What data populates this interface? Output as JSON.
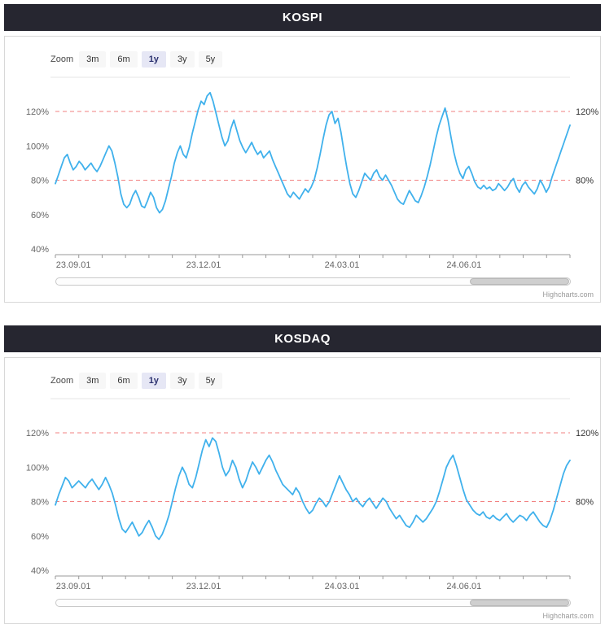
{
  "page": {
    "credit": "Highcharts.com"
  },
  "panels": [
    {
      "title": "KOSPI",
      "toolbar": {
        "zoom_label": "Zoom",
        "buttons": [
          {
            "label": "3m",
            "selected": false
          },
          {
            "label": "6m",
            "selected": false
          },
          {
            "label": "1y",
            "selected": true
          },
          {
            "label": "3y",
            "selected": false
          },
          {
            "label": "5y",
            "selected": false
          }
        ]
      },
      "navigator": {
        "thumb_start": 0.805,
        "thumb_end": 0.998
      }
    },
    {
      "title": "KOSDAQ",
      "toolbar": {
        "zoom_label": "Zoom",
        "buttons": [
          {
            "label": "3m",
            "selected": false
          },
          {
            "label": "6m",
            "selected": false
          },
          {
            "label": "1y",
            "selected": true
          },
          {
            "label": "3y",
            "selected": false
          },
          {
            "label": "5y",
            "selected": false
          }
        ]
      },
      "navigator": {
        "thumb_start": 0.805,
        "thumb_end": 0.998
      }
    }
  ],
  "chart_data": [
    {
      "type": "line",
      "title": "KOSPI",
      "xlabel": "",
      "ylabel": "",
      "ylim": [
        40,
        140
      ],
      "y_ticks": [
        120,
        100,
        80,
        60,
        40
      ],
      "x_ticks": [
        {
          "pos": 0.035,
          "label": "23.09.01"
        },
        {
          "pos": 0.288,
          "label": "23.12.01"
        },
        {
          "pos": 0.557,
          "label": "24.03.01"
        },
        {
          "pos": 0.794,
          "label": "24.06.01"
        }
      ],
      "plot_lines": [
        {
          "value": 120,
          "label": "120%"
        },
        {
          "value": 80,
          "label": "80%"
        }
      ],
      "color": "#40b1ec",
      "plotline_color": "#f28080",
      "grid": false,
      "legend": "none",
      "values": [
        78,
        83,
        88,
        93,
        95,
        90,
        86,
        88,
        91,
        89,
        86,
        88,
        90,
        87,
        85,
        88,
        92,
        96,
        100,
        97,
        90,
        82,
        72,
        66,
        64,
        66,
        71,
        74,
        70,
        65,
        64,
        68,
        73,
        70,
        64,
        61,
        63,
        68,
        75,
        82,
        90,
        96,
        100,
        95,
        93,
        99,
        107,
        114,
        121,
        126,
        124,
        129,
        131,
        126,
        119,
        112,
        105,
        100,
        103,
        110,
        115,
        109,
        103,
        99,
        96,
        99,
        102,
        98,
        95,
        97,
        93,
        95,
        97,
        92,
        88,
        84,
        80,
        76,
        72,
        70,
        73,
        71,
        69,
        72,
        75,
        73,
        76,
        80,
        87,
        95,
        104,
        112,
        118,
        120,
        113,
        116,
        108,
        97,
        87,
        78,
        72,
        70,
        74,
        79,
        84,
        82,
        80,
        84,
        86,
        82,
        80,
        83,
        80,
        77,
        73,
        69,
        67,
        66,
        70,
        74,
        71,
        68,
        67,
        71,
        76,
        82,
        89,
        97,
        105,
        112,
        117,
        122,
        115,
        105,
        96,
        89,
        84,
        81,
        86,
        88,
        84,
        79,
        76,
        75,
        77,
        75,
        76,
        74,
        75,
        78,
        76,
        74,
        76,
        79,
        81,
        76,
        73,
        77,
        79,
        76,
        74,
        72,
        75,
        80,
        77,
        73,
        76,
        82,
        87,
        92,
        97,
        102,
        107,
        112
      ]
    },
    {
      "type": "line",
      "title": "KOSDAQ",
      "xlabel": "",
      "ylabel": "",
      "ylim": [
        40,
        140
      ],
      "y_ticks": [
        120,
        100,
        80,
        60,
        40
      ],
      "x_ticks": [
        {
          "pos": 0.035,
          "label": "23.09.01"
        },
        {
          "pos": 0.288,
          "label": "23.12.01"
        },
        {
          "pos": 0.557,
          "label": "24.03.01"
        },
        {
          "pos": 0.794,
          "label": "24.06.01"
        }
      ],
      "plot_lines": [
        {
          "value": 120,
          "label": "120%"
        },
        {
          "value": 80,
          "label": "80%"
        }
      ],
      "color": "#40b1ec",
      "plotline_color": "#f28080",
      "grid": false,
      "legend": "none",
      "values": [
        78,
        84,
        89,
        94,
        92,
        88,
        90,
        92,
        90,
        88,
        91,
        93,
        90,
        87,
        90,
        94,
        90,
        85,
        78,
        70,
        64,
        62,
        65,
        68,
        64,
        60,
        62,
        66,
        69,
        65,
        60,
        58,
        61,
        66,
        72,
        80,
        88,
        95,
        100,
        96,
        90,
        88,
        94,
        102,
        110,
        116,
        112,
        117,
        115,
        108,
        100,
        95,
        98,
        104,
        100,
        93,
        88,
        92,
        98,
        103,
        100,
        96,
        100,
        104,
        107,
        103,
        98,
        94,
        90,
        88,
        86,
        84,
        88,
        85,
        80,
        76,
        73,
        75,
        79,
        82,
        80,
        77,
        80,
        85,
        90,
        95,
        91,
        87,
        84,
        80,
        82,
        79,
        77,
        80,
        82,
        79,
        76,
        79,
        82,
        80,
        76,
        73,
        70,
        72,
        69,
        66,
        65,
        68,
        72,
        70,
        68,
        70,
        73,
        76,
        80,
        86,
        93,
        100,
        104,
        107,
        101,
        94,
        87,
        81,
        78,
        75,
        73,
        72,
        74,
        71,
        70,
        72,
        70,
        69,
        71,
        73,
        70,
        68,
        70,
        72,
        71,
        69,
        72,
        74,
        71,
        68,
        66,
        65,
        69,
        75,
        82,
        89,
        96,
        101,
        104
      ]
    }
  ]
}
